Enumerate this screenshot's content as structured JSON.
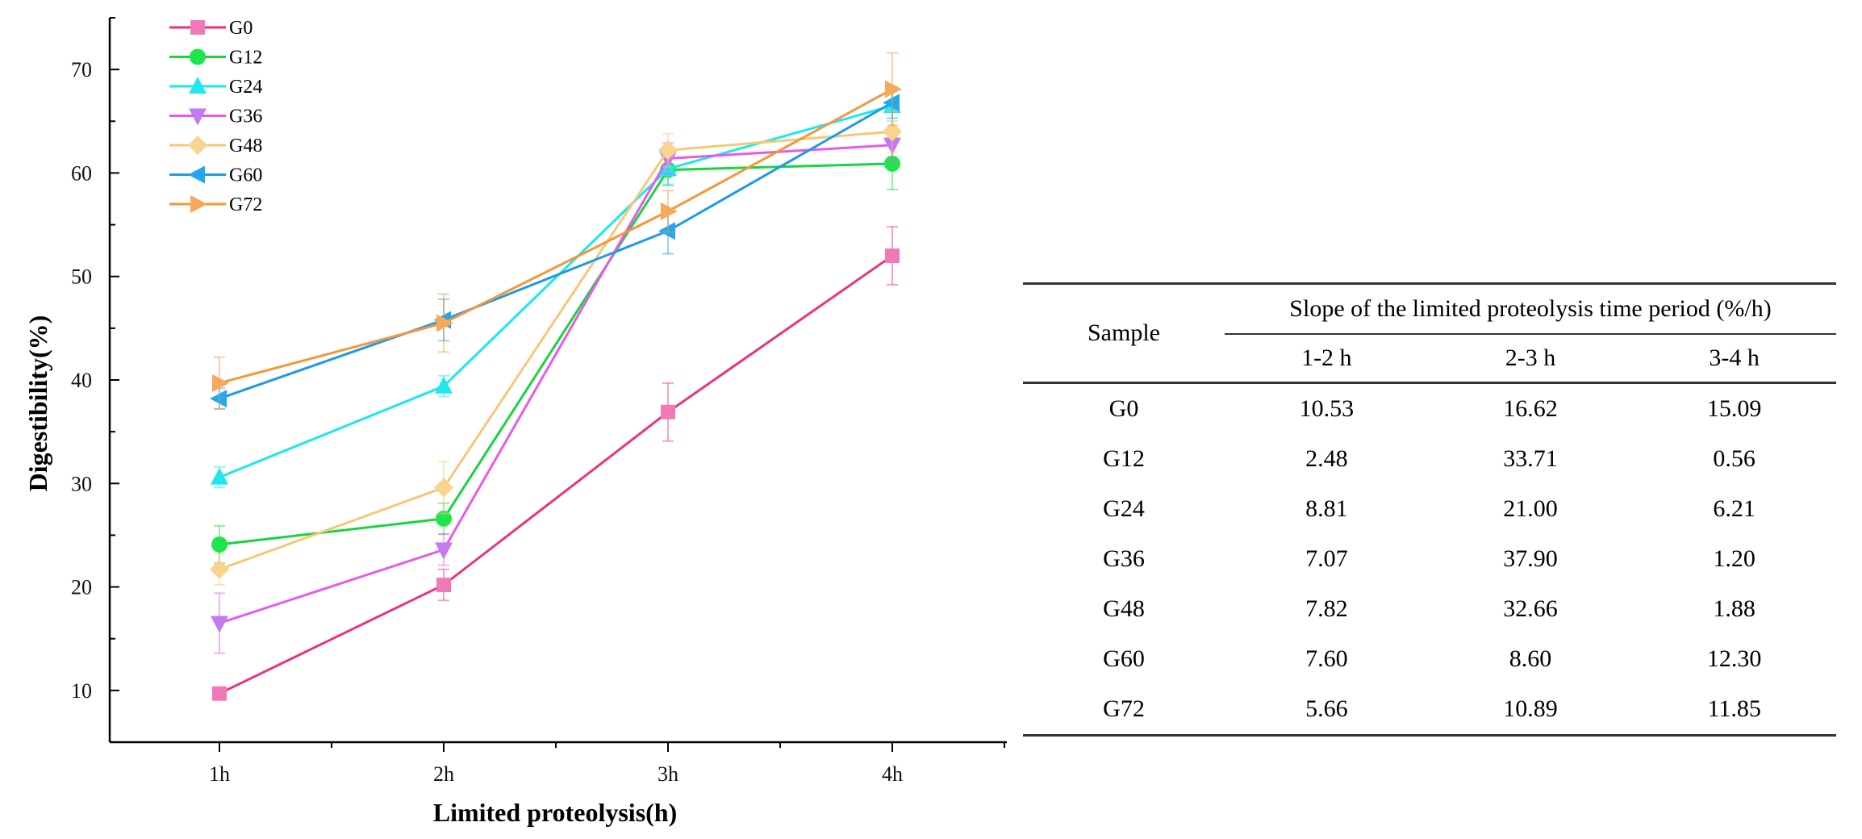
{
  "chart_data": {
    "type": "line",
    "categories": [
      "1h",
      "2h",
      "3h",
      "4h"
    ],
    "xlabel": "Limited proteolysis(h)",
    "ylabel": "Digestibility(%)",
    "ylim": [
      5,
      75
    ],
    "yticks": [
      10,
      20,
      30,
      40,
      50,
      60,
      70
    ],
    "legend_position": "top-left",
    "series": [
      {
        "name": "G0",
        "marker": "square",
        "color": "#e8337f",
        "marker_color": "#f07ab8",
        "values": [
          9.7,
          20.2,
          36.9,
          52.0
        ],
        "errors": [
          0.5,
          1.5,
          2.8,
          2.8
        ]
      },
      {
        "name": "G12",
        "marker": "circle",
        "color": "#17d43f",
        "marker_color": "#1ee64a",
        "values": [
          24.1,
          26.6,
          60.3,
          60.9
        ],
        "errors": [
          1.8,
          1.5,
          1.5,
          2.5
        ]
      },
      {
        "name": "G24",
        "marker": "triangle-up",
        "color": "#19e8ec",
        "marker_color": "#1ee8ee",
        "values": [
          30.6,
          39.4,
          60.4,
          66.5
        ],
        "errors": [
          1.0,
          1.0,
          1.5,
          1.5
        ]
      },
      {
        "name": "G36",
        "marker": "triangle-down",
        "color": "#e85ae8",
        "marker_color": "#c47af0",
        "values": [
          16.5,
          23.6,
          61.4,
          62.7
        ],
        "errors": [
          2.9,
          1.5,
          1.5,
          1.5
        ]
      },
      {
        "name": "G48",
        "marker": "diamond",
        "color": "#f5c878",
        "marker_color": "#f8d48c",
        "values": [
          21.7,
          29.6,
          62.2,
          64.0
        ],
        "errors": [
          1.5,
          2.5,
          1.6,
          2.0
        ]
      },
      {
        "name": "G60",
        "marker": "triangle-left",
        "color": "#1d9ae8",
        "marker_color": "#22a8f0",
        "values": [
          38.2,
          45.8,
          54.4,
          66.8
        ],
        "errors": [
          1.0,
          2.0,
          2.2,
          1.5
        ]
      },
      {
        "name": "G72",
        "marker": "triangle-right",
        "color": "#f5963a",
        "marker_color": "#f7a85a",
        "values": [
          39.7,
          45.5,
          56.3,
          68.1
        ],
        "errors": [
          2.5,
          2.8,
          2.0,
          3.5
        ]
      }
    ]
  },
  "table": {
    "sample_header": "Sample",
    "group_header": "Slope of the limited proteolysis time period (%/h)",
    "columns": [
      "1-2 h",
      "2-3 h",
      "3-4 h"
    ],
    "rows": [
      {
        "sample": "G0",
        "values": [
          "10.53",
          "16.62",
          "15.09"
        ]
      },
      {
        "sample": "G12",
        "values": [
          "2.48",
          "33.71",
          "0.56"
        ]
      },
      {
        "sample": "G24",
        "values": [
          "8.81",
          "21.00",
          "6.21"
        ]
      },
      {
        "sample": "G36",
        "values": [
          "7.07",
          "37.90",
          "1.20"
        ]
      },
      {
        "sample": "G48",
        "values": [
          "7.82",
          "32.66",
          "1.88"
        ]
      },
      {
        "sample": "G60",
        "values": [
          "7.60",
          "8.60",
          "12.30"
        ]
      },
      {
        "sample": "G72",
        "values": [
          "5.66",
          "10.89",
          "11.85"
        ]
      }
    ]
  }
}
